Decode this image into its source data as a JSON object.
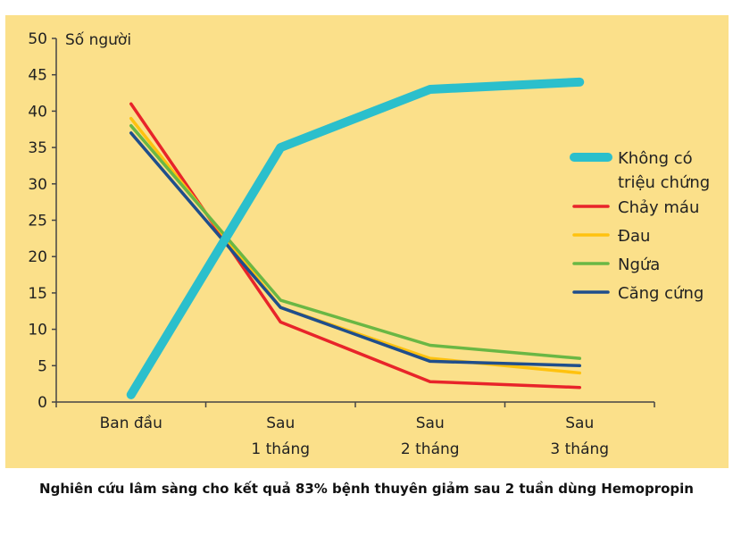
{
  "chart_data": {
    "type": "line",
    "ylabel": "Số người",
    "ylim": [
      0,
      50
    ],
    "yticks": [
      0,
      5,
      10,
      15,
      20,
      25,
      30,
      35,
      40,
      45,
      50
    ],
    "categories": [
      [
        "Ban đầu"
      ],
      [
        "Sau",
        "1 tháng"
      ],
      [
        "Sau",
        "2 tháng"
      ],
      [
        "Sau",
        "3 tháng"
      ]
    ],
    "legend_position": "right",
    "series": [
      {
        "name": [
          "Không có",
          "triệu chứng"
        ],
        "color": "#2bbfcc",
        "values": [
          1,
          35,
          43,
          44
        ]
      },
      {
        "name": [
          "Chảy máu"
        ],
        "color": "#e8242a",
        "values": [
          41,
          11,
          2.8,
          2
        ]
      },
      {
        "name": [
          "Đau"
        ],
        "color": "#ffc20e",
        "values": [
          39,
          13,
          6,
          4
        ]
      },
      {
        "name": [
          "Ngứa"
        ],
        "color": "#6ab744",
        "values": [
          38,
          14,
          7.8,
          6
        ]
      },
      {
        "name": [
          "Căng cứng"
        ],
        "color": "#1f4e8c",
        "values": [
          37,
          13,
          5.6,
          5
        ]
      }
    ]
  },
  "caption": "Nghiên cứu lâm sàng cho kết quả 83% bệnh thuyên giảm sau 2 tuần dùng Hemopropin"
}
